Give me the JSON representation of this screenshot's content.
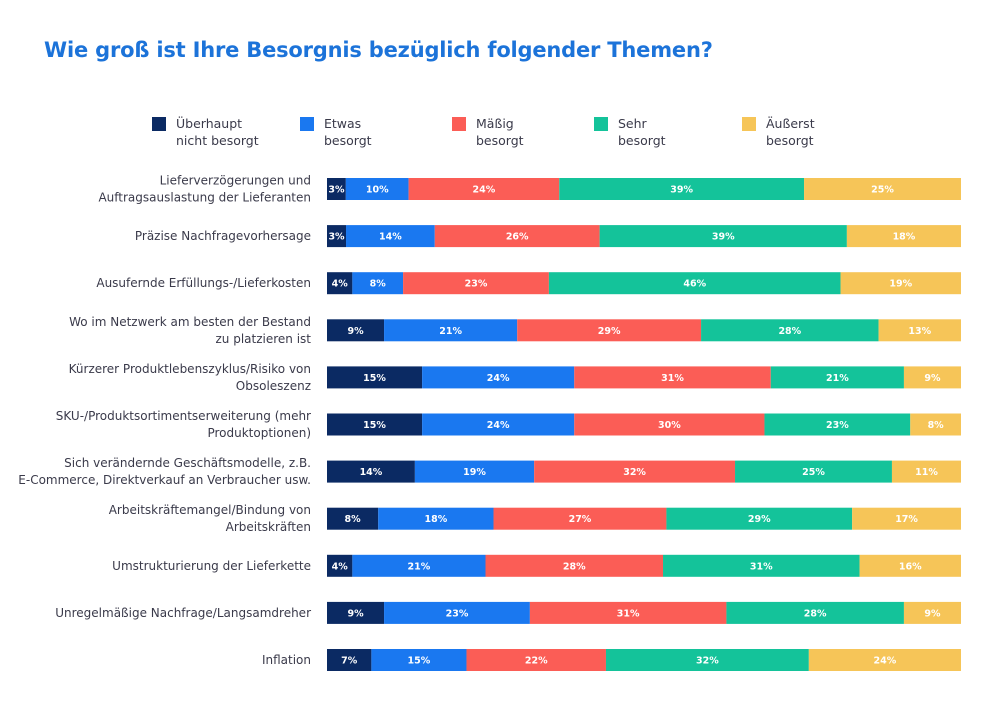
{
  "chart_data": {
    "type": "bar",
    "orientation": "horizontal",
    "stacked": true,
    "title": "Wie groß ist Ihre Besorgnis bezüglich folgender Themen?",
    "legend_position": "top",
    "grid": false,
    "xlim": [
      0,
      100
    ],
    "categories": [
      [
        "Lieferverzögerungen und",
        "Auftragsauslastung der Lieferanten"
      ],
      [
        "Präzise Nachfragevorhersage"
      ],
      [
        "Ausufernde Erfüllungs-/Lieferkosten"
      ],
      [
        "Wo im Netzwerk am besten der Bestand",
        "zu platzieren ist"
      ],
      [
        "Kürzerer Produktlebenszyklus/Risiko von",
        "Obsoleszenz"
      ],
      [
        "SKU-/Produktsortimentserweiterung (mehr",
        "Produktoptionen)"
      ],
      [
        "Sich verändernde Geschäftsmodelle, z.B.",
        "E-Commerce, Direktverkauf an Verbraucher usw."
      ],
      [
        "Arbeitskräftemangel/Bindung von",
        "Arbeitskräften"
      ],
      [
        "Umstrukturierung der Lieferkette"
      ],
      [
        "Unregelmäßige Nachfrage/Langsamdreher"
      ],
      [
        "Inflation"
      ]
    ],
    "series": [
      {
        "name": [
          "Überhaupt",
          "nicht besorgt"
        ],
        "color": "#0b2a63",
        "values": [
          3,
          3,
          4,
          9,
          15,
          15,
          14,
          8,
          4,
          9,
          7
        ]
      },
      {
        "name": [
          "Etwas",
          "besorgt"
        ],
        "color": "#1a78f0",
        "values": [
          10,
          14,
          8,
          21,
          24,
          24,
          19,
          18,
          21,
          23,
          15
        ]
      },
      {
        "name": [
          "Mäßig",
          "besorgt"
        ],
        "color": "#fb5d56",
        "values": [
          24,
          26,
          23,
          29,
          31,
          30,
          32,
          27,
          28,
          31,
          22
        ]
      },
      {
        "name": [
          "Sehr",
          "besorgt"
        ],
        "color": "#14c39a",
        "values": [
          39,
          39,
          46,
          28,
          21,
          23,
          25,
          29,
          31,
          28,
          32
        ]
      },
      {
        "name": [
          "Äußerst",
          "besorgt"
        ],
        "color": "#f6c558",
        "values": [
          25,
          18,
          19,
          13,
          9,
          8,
          11,
          17,
          16,
          9,
          24
        ]
      }
    ],
    "value_suffix": "%"
  }
}
